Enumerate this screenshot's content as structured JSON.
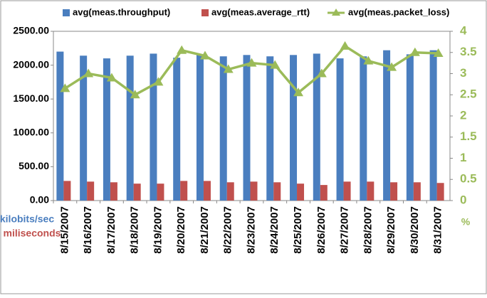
{
  "chart_data": {
    "type": "bar",
    "categories": [
      "8/15/2007",
      "8/16/2007",
      "8/17/2007",
      "8/18/2007",
      "8/19/2007",
      "8/20/2007",
      "8/21/2007",
      "8/22/2007",
      "8/23/2007",
      "8/24/2007",
      "8/25/2007",
      "8/26/2007",
      "8/27/2007",
      "8/28/2007",
      "8/29/2007",
      "8/30/2007",
      "8/31/2007"
    ],
    "series": [
      {
        "name": "avg(meas.throughput)",
        "type": "bar",
        "color": "#4a7ebf",
        "values": [
          2200,
          2140,
          2100,
          2140,
          2170,
          2110,
          2150,
          2130,
          2150,
          2130,
          2150,
          2170,
          2100,
          2130,
          2220,
          2160,
          2220
        ]
      },
      {
        "name": "avg(meas.average_rtt)",
        "type": "bar",
        "color": "#c0504d",
        "values": [
          290,
          280,
          270,
          250,
          250,
          290,
          290,
          270,
          280,
          270,
          250,
          230,
          280,
          280,
          270,
          270,
          260
        ]
      },
      {
        "name": "avg(meas.packet_loss)",
        "type": "line",
        "axis": "y2",
        "color": "#9bbb59",
        "values": [
          2.65,
          3.0,
          2.9,
          2.5,
          2.8,
          3.55,
          3.42,
          3.1,
          3.25,
          3.2,
          2.55,
          3.0,
          3.65,
          3.3,
          3.15,
          3.5,
          3.48
        ]
      }
    ],
    "ylabel": "kilobits/sec",
    "ylabel_secondary": "miliseconds",
    "y2label": "%",
    "ylim": [
      0,
      2500
    ],
    "yticks": [
      {
        "value": 0,
        "label": "0.00"
      },
      {
        "value": 500,
        "label": "500.00"
      },
      {
        "value": 1000,
        "label": "1000.00"
      },
      {
        "value": 1500,
        "label": "1500.00"
      },
      {
        "value": 2000,
        "label": "2000.00"
      },
      {
        "value": 2500,
        "label": "2500.00"
      }
    ],
    "y2lim": [
      0,
      4
    ],
    "y2ticks": [
      0,
      0.5,
      1,
      1.5,
      2,
      2.5,
      3,
      3.5,
      4
    ],
    "grid": false
  }
}
